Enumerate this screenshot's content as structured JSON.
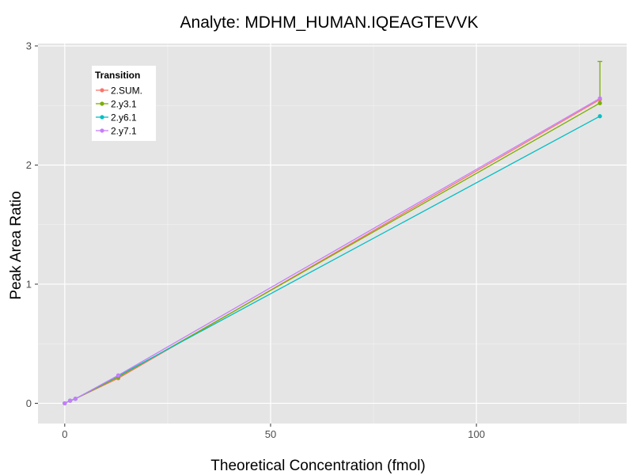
{
  "chart_data": {
    "type": "line",
    "title": "Analyte: MDHM_HUMAN.IQEAGTEVVK",
    "xlabel": "Theoretical Concentration (fmol)",
    "ylabel": "Peak Area Ratio",
    "xlim": [
      -6.5,
      136.5
    ],
    "ylim": [
      -0.17,
      3.02
    ],
    "xticks": [
      0,
      50,
      100
    ],
    "xtick_labels": [
      "0",
      "50",
      "100"
    ],
    "yticks": [
      0,
      1,
      2,
      3
    ],
    "ytick_labels": [
      "0",
      "1",
      "2",
      "3"
    ],
    "grid": true,
    "legend": {
      "title": "Transition",
      "position": "top-left",
      "labels": [
        "2.SUM.",
        "2.y3.1",
        "2.y6.1",
        "2.y7.1"
      ]
    },
    "series": [
      {
        "name": "2.SUM.",
        "color": "#F8766D",
        "x": [
          0,
          1.3,
          2.6,
          13,
          130
        ],
        "y": [
          0.0,
          0.022,
          0.038,
          0.21,
          2.55
        ],
        "error_bars": []
      },
      {
        "name": "2.y3.1",
        "color": "#7CAE00",
        "x": [
          0,
          1.3,
          2.6,
          13,
          130
        ],
        "y": [
          0.0,
          0.022,
          0.038,
          0.22,
          2.52
        ],
        "error_bars": [
          {
            "x": 130,
            "low": 2.52,
            "high": 2.87
          }
        ]
      },
      {
        "name": "2.y6.1",
        "color": "#00BFC4",
        "x": [
          0,
          1.3,
          2.6,
          13,
          130
        ],
        "y": [
          0.0,
          0.022,
          0.038,
          0.23,
          2.41
        ],
        "error_bars": []
      },
      {
        "name": "2.y7.1",
        "color": "#C77CFF",
        "x": [
          0,
          1.3,
          2.6,
          13,
          130
        ],
        "y": [
          0.0,
          0.022,
          0.038,
          0.235,
          2.56
        ],
        "error_bars": []
      }
    ]
  }
}
